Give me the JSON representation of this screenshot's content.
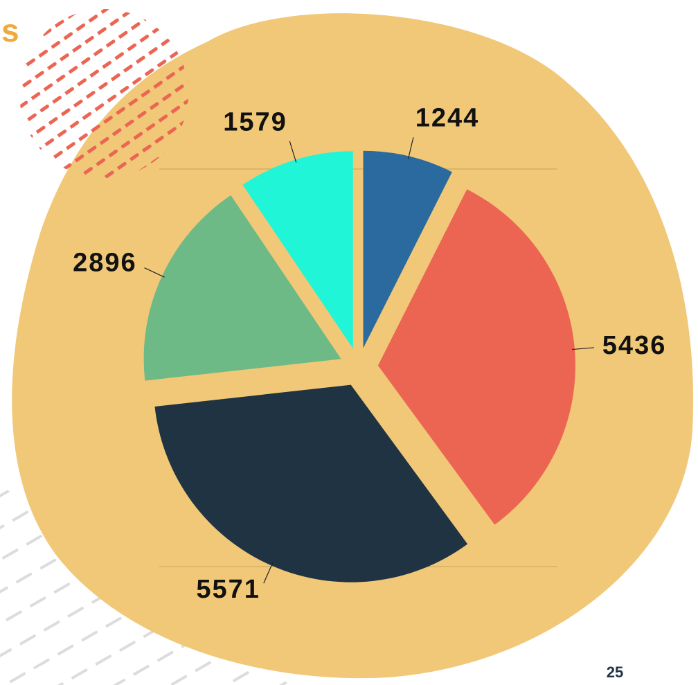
{
  "slide": {
    "title_fragment": "s",
    "page_number": "25"
  },
  "chart_data": {
    "type": "pie",
    "values": [
      1244,
      5436,
      5571,
      2896,
      1579
    ],
    "colors": [
      "#2b6a9e",
      "#ec6553",
      "#1f3343",
      "#6dba87",
      "#20f5d8"
    ]
  }
}
